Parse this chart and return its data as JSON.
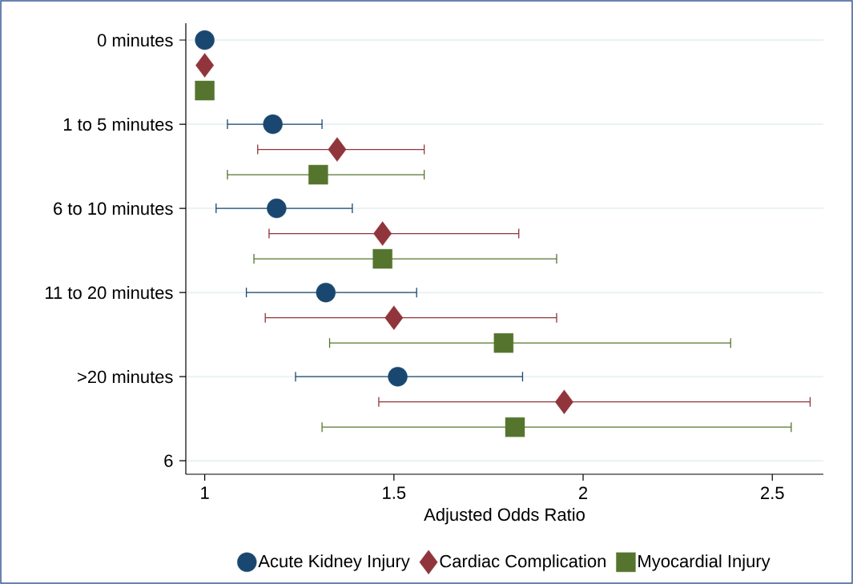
{
  "chart_data": {
    "type": "scatter",
    "orientation": "horizontal",
    "xlabel": "Adjusted Odds Ratio",
    "xlim": [
      0.95,
      2.635
    ],
    "xticks": [
      1,
      1.5,
      2,
      2.5
    ],
    "categories": [
      "0 minutes",
      "1 to 5 minutes",
      "6 to 10 minutes",
      "11 to 20 minutes",
      ">20 minutes",
      "6"
    ],
    "grid": "y",
    "legend": "bottom",
    "series": [
      {
        "name": "Acute Kidney Injury",
        "color": "#1a476f",
        "marker": "circle",
        "values": [
          1,
          1.18,
          1.19,
          1.32,
          1.51,
          null
        ],
        "errors": [
          null,
          [
            1.06,
            1.31
          ],
          [
            1.03,
            1.39
          ],
          [
            1.11,
            1.56
          ],
          [
            1.24,
            1.84
          ],
          null
        ]
      },
      {
        "name": "Cardiac Complication",
        "color": "#90353b",
        "marker": "diamond",
        "values": [
          1,
          1.35,
          1.47,
          1.5,
          1.95,
          null
        ],
        "errors": [
          null,
          [
            1.14,
            1.58
          ],
          [
            1.17,
            1.83
          ],
          [
            1.16,
            1.93
          ],
          [
            1.46,
            2.6
          ],
          null
        ]
      },
      {
        "name": "Myocardial Injury",
        "color": "#55752f",
        "marker": "square",
        "values": [
          1,
          1.3,
          1.47,
          1.79,
          1.82,
          null
        ],
        "errors": [
          null,
          [
            1.06,
            1.58
          ],
          [
            1.13,
            1.93
          ],
          [
            1.33,
            2.39
          ],
          [
            1.31,
            2.55
          ],
          null
        ]
      }
    ]
  }
}
